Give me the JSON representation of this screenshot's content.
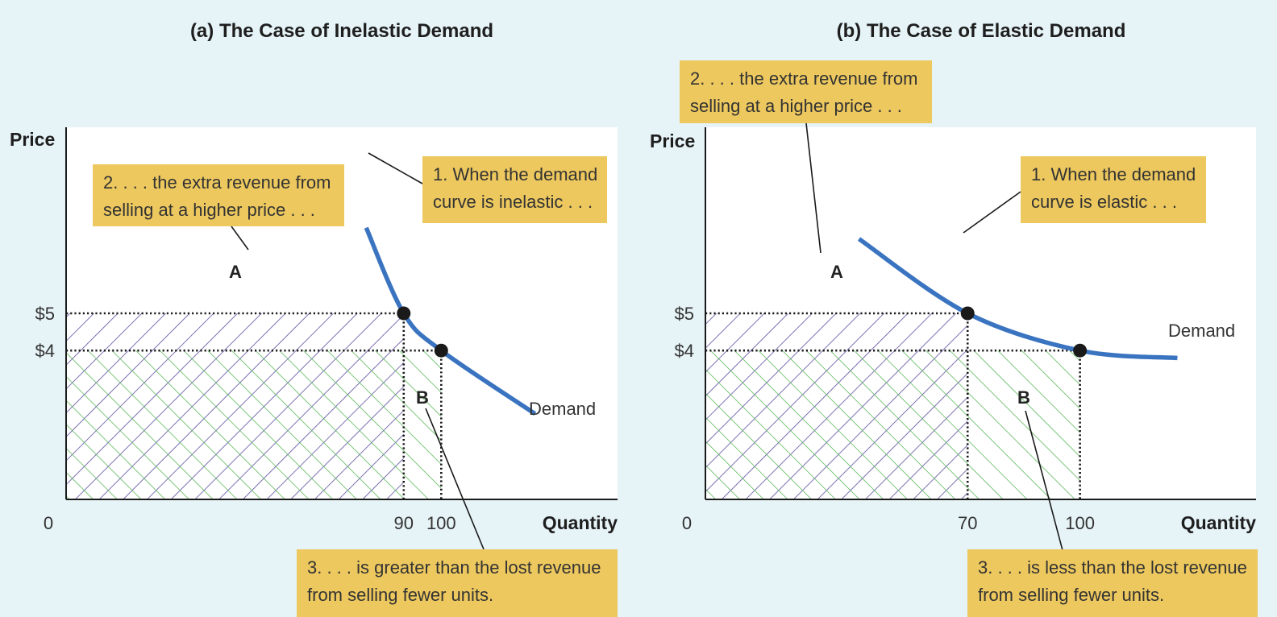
{
  "colors": {
    "background": "#e6f3f7",
    "plot_area": "#ffffff",
    "demand_curve": "#3a74c0",
    "area_a_hatch": "#5b4da0",
    "area_b_hatch": "#5cb85c",
    "callout_fill": "#edc85e",
    "point": "#1a1a1a"
  },
  "chart_data": [
    {
      "type": "line",
      "title": "(a) The Case of Inelastic Demand",
      "xlabel": "Quantity",
      "ylabel": "Price",
      "origin_label": "0",
      "x_ticks": [
        {
          "value": 90,
          "label": "90"
        },
        {
          "value": 100,
          "label": "100"
        }
      ],
      "y_ticks": [
        {
          "value": 5,
          "label": "$5"
        },
        {
          "value": 4,
          "label": "$4"
        }
      ],
      "points": [
        {
          "x": 90,
          "y": 5
        },
        {
          "x": 100,
          "y": 4
        }
      ],
      "series": [
        {
          "name": "Demand",
          "x": [
            80,
            90,
            100,
            125
          ],
          "y": [
            7.3,
            5,
            4,
            2.3
          ]
        }
      ],
      "areas": [
        {
          "label": "A",
          "x": [
            0,
            90
          ],
          "y": [
            4,
            5
          ]
        },
        {
          "label": "B",
          "x": [
            90,
            100
          ],
          "y": [
            0,
            4
          ]
        }
      ],
      "callouts": [
        {
          "lines": [
            "2. . . . the extra revenue from",
            "selling at a higher price . . ."
          ]
        },
        {
          "lines": [
            "1. When the demand",
            "curve is inelastic . . ."
          ]
        },
        {
          "lines": [
            "3. . . . is greater than the lost revenue",
            "from selling fewer units."
          ]
        }
      ]
    },
    {
      "type": "line",
      "title": "(b) The Case of Elastic Demand",
      "xlabel": "Quantity",
      "ylabel": "Price",
      "origin_label": "0",
      "x_ticks": [
        {
          "value": 70,
          "label": "70"
        },
        {
          "value": 100,
          "label": "100"
        }
      ],
      "y_ticks": [
        {
          "value": 5,
          "label": "$5"
        },
        {
          "value": 4,
          "label": "$4"
        }
      ],
      "points": [
        {
          "x": 70,
          "y": 5
        },
        {
          "x": 100,
          "y": 4
        }
      ],
      "series": [
        {
          "name": "Demand",
          "x": [
            41,
            70,
            100,
            126
          ],
          "y": [
            7.0,
            5,
            4,
            3.8
          ]
        }
      ],
      "areas": [
        {
          "label": "A",
          "x": [
            0,
            70
          ],
          "y": [
            4,
            5
          ]
        },
        {
          "label": "B",
          "x": [
            70,
            100
          ],
          "y": [
            0,
            4
          ]
        }
      ],
      "callouts": [
        {
          "lines": [
            "2. . . . the extra revenue from",
            "selling at a higher price . . ."
          ]
        },
        {
          "lines": [
            "1. When the demand",
            "curve is elastic . . ."
          ]
        },
        {
          "lines": [
            "3. . . . is less than the lost revenue",
            "from selling fewer units."
          ]
        }
      ]
    }
  ]
}
